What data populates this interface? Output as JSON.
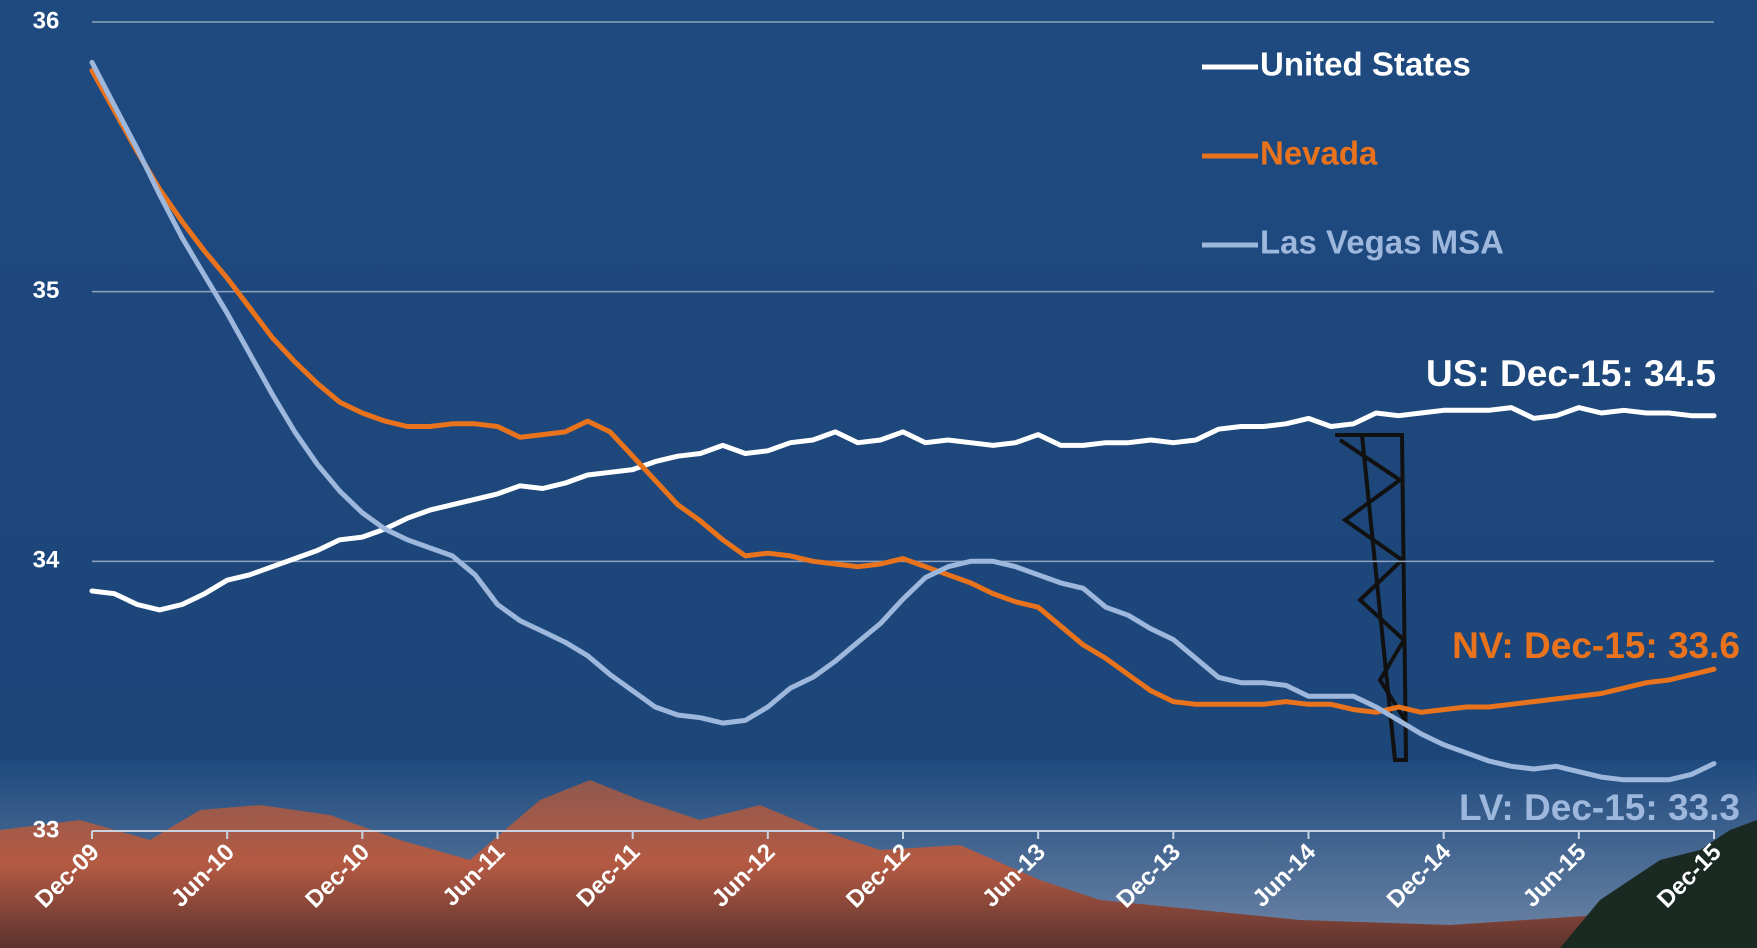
{
  "chart_data": {
    "type": "line",
    "categories": [
      "Dec-09",
      null,
      null,
      null,
      null,
      null,
      "Jun-10",
      null,
      null,
      null,
      null,
      null,
      "Dec-10",
      null,
      null,
      null,
      null,
      null,
      "Jun-11",
      null,
      null,
      null,
      null,
      null,
      "Dec-11",
      null,
      null,
      null,
      null,
      null,
      "Jun-12",
      null,
      null,
      null,
      null,
      null,
      "Dec-12",
      null,
      null,
      null,
      null,
      null,
      "Jun-13",
      null,
      null,
      null,
      null,
      null,
      "Dec-13",
      null,
      null,
      null,
      null,
      null,
      "Jun-14",
      null,
      null,
      null,
      null,
      null,
      "Dec-14",
      null,
      null,
      null,
      null,
      null,
      "Jun-15",
      null,
      null,
      null,
      null,
      null,
      "Dec-15"
    ],
    "series": [
      {
        "name": "United States",
        "color": "#ffffff",
        "values": [
          33.89,
          33.88,
          33.84,
          33.82,
          33.84,
          33.88,
          33.93,
          33.95,
          33.98,
          34.01,
          34.04,
          34.08,
          34.09,
          34.12,
          34.16,
          34.19,
          34.21,
          34.23,
          34.25,
          34.28,
          34.27,
          34.29,
          34.32,
          34.33,
          34.34,
          34.37,
          34.39,
          34.4,
          34.43,
          34.4,
          34.41,
          34.44,
          34.45,
          34.48,
          34.44,
          34.45,
          34.48,
          34.44,
          34.45,
          34.44,
          34.43,
          34.44,
          34.47,
          34.43,
          34.43,
          34.44,
          34.44,
          34.45,
          34.44,
          34.45,
          34.49,
          34.5,
          34.5,
          34.51,
          34.53,
          34.5,
          34.51,
          34.55,
          34.54,
          34.55,
          34.56,
          34.56,
          34.56,
          34.57,
          34.53,
          34.54,
          34.57,
          34.55,
          34.56,
          34.55,
          34.55,
          34.54,
          34.54
        ]
      },
      {
        "name": "Nevada",
        "color": "#e8731c",
        "values": [
          35.82,
          35.67,
          35.52,
          35.38,
          35.26,
          35.15,
          35.05,
          34.94,
          34.83,
          34.74,
          34.66,
          34.59,
          34.55,
          34.52,
          34.5,
          34.5,
          34.51,
          34.51,
          34.5,
          34.46,
          34.47,
          34.48,
          34.52,
          34.48,
          34.39,
          34.3,
          34.21,
          34.15,
          34.08,
          34.02,
          34.03,
          34.02,
          34.0,
          33.99,
          33.98,
          33.99,
          34.01,
          33.98,
          33.95,
          33.92,
          33.88,
          33.85,
          33.83,
          33.76,
          33.69,
          33.64,
          33.58,
          33.52,
          33.48,
          33.47,
          33.47,
          33.47,
          33.47,
          33.48,
          33.47,
          33.47,
          33.45,
          33.44,
          33.46,
          33.44,
          33.45,
          33.46,
          33.46,
          33.47,
          33.48,
          33.49,
          33.5,
          33.51,
          33.53,
          33.55,
          33.56,
          33.58,
          33.6
        ]
      },
      {
        "name": "Las Vegas MSA",
        "color": "#9db7dd",
        "values": [
          35.85,
          35.69,
          35.53,
          35.36,
          35.2,
          35.06,
          34.92,
          34.77,
          34.62,
          34.48,
          34.36,
          34.26,
          34.18,
          34.12,
          34.08,
          34.05,
          34.02,
          33.95,
          33.84,
          33.78,
          33.74,
          33.7,
          33.65,
          33.58,
          33.52,
          33.46,
          33.43,
          33.42,
          33.4,
          33.41,
          33.46,
          33.53,
          33.57,
          33.63,
          33.7,
          33.77,
          33.86,
          33.94,
          33.98,
          34.0,
          34.0,
          33.98,
          33.95,
          33.92,
          33.9,
          33.83,
          33.8,
          33.75,
          33.71,
          33.64,
          33.57,
          33.55,
          33.55,
          33.54,
          33.5,
          33.5,
          33.5,
          33.46,
          33.41,
          33.36,
          33.32,
          33.29,
          33.26,
          33.24,
          33.23,
          33.24,
          33.22,
          33.2,
          33.19,
          33.19,
          33.19,
          33.21,
          33.25
        ]
      }
    ],
    "annotations": [
      {
        "text": "US: Dec-15: 34.5",
        "color": "#ffffff"
      },
      {
        "text": "NV: Dec-15: 33.6",
        "color": "#e8731c"
      },
      {
        "text": "LV: Dec-15: 33.3",
        "color": "#9db7dd"
      }
    ],
    "ylim": [
      33,
      36
    ],
    "yticks": [
      33,
      34,
      35,
      36
    ],
    "grid": true
  }
}
